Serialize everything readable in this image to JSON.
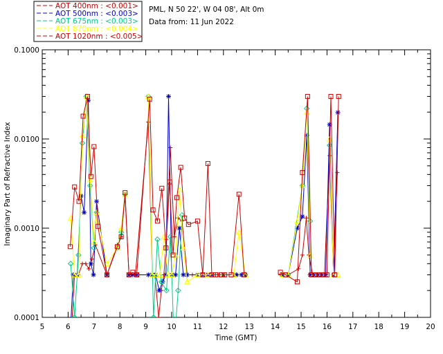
{
  "header": {
    "site": "PML, N 50 22', W 04 08', Alt 0m",
    "date": "Data from: 11 Jun 2022"
  },
  "chart_data": {
    "type": "line",
    "title": "",
    "xlabel": "Time (GMT)",
    "ylabel": "Imaginary Part of Refractive Index",
    "xlim": [
      5,
      20
    ],
    "ylim": [
      0.0001,
      0.1
    ],
    "yscale": "log",
    "grid": false,
    "legend_position": "top-left",
    "x_ticks": [
      5,
      6,
      7,
      8,
      9,
      10,
      11,
      12,
      13,
      14,
      15,
      16,
      17,
      18,
      19,
      20
    ],
    "x_tick_labels": [
      "5",
      "6",
      "7",
      "8",
      "9",
      "10",
      "11",
      "12",
      "13",
      "14",
      "15",
      "16",
      "17",
      "18",
      "19",
      "20"
    ],
    "y_ticks": [
      0.0001,
      0.001,
      0.01,
      0.1
    ],
    "y_tick_labels": [
      "0.0001",
      "0.0010",
      "0.0100",
      "0.1000"
    ],
    "series": [
      {
        "name": "AOT  400nm : <0.001>",
        "color": "#cc0000",
        "marker": "plus",
        "x": [
          6.1,
          6.25,
          6.4,
          6.55,
          6.68,
          6.8,
          6.92,
          7.05,
          7.5,
          7.9,
          8.05,
          8.2,
          8.35,
          8.45,
          8.6,
          9.1,
          9.25,
          9.35,
          9.5,
          9.6,
          9.7,
          9.8,
          9.95,
          10.1,
          10.25,
          10.4,
          10.6,
          10.8,
          11.0,
          11.15,
          11.35,
          11.55,
          11.7,
          11.85,
          12.05,
          12.4,
          12.55,
          12.7,
          12.85,
          14.2,
          14.35,
          14.5,
          14.9,
          15.05,
          15.2,
          15.3,
          15.45,
          15.6,
          15.75,
          15.9,
          16.1,
          16.25,
          16.4
        ],
        "y": [
          5e-05,
          0.0003,
          0.0003,
          0.0004,
          0.0004,
          0.00035,
          0.00045,
          0.00065,
          0.0003,
          0.00065,
          0.0008,
          0.0023,
          0.0003,
          0.0003,
          0.0003,
          0.0155,
          0.0003,
          0.0003,
          0.0001,
          0.0002,
          0.0003,
          0.00075,
          0.008,
          0.0008,
          0.0013,
          0.0012,
          0.0003,
          0.0003,
          0.0003,
          0.0003,
          0.0003,
          0.0003,
          0.0003,
          0.0003,
          0.0003,
          0.0003,
          0.0003,
          0.0003,
          0.0003,
          0.0003,
          0.0003,
          0.0003,
          0.00035,
          0.0005,
          0.0013,
          0.0005,
          0.0003,
          0.0003,
          0.0003,
          0.0003,
          0.0065,
          0.0003,
          0.0042
        ]
      },
      {
        "name": "AOT  500nm : <0.003>",
        "color": "#0000cc",
        "marker": "star",
        "x": [
          6.1,
          6.2,
          6.35,
          6.5,
          6.62,
          6.78,
          6.88,
          6.98,
          7.1,
          7.5,
          8.35,
          8.5,
          8.65,
          9.1,
          9.25,
          9.38,
          9.52,
          9.65,
          9.78,
          9.88,
          10.0,
          10.15,
          10.3,
          10.45,
          10.6,
          11.0,
          11.2,
          11.4,
          11.55,
          12.0,
          12.5,
          12.7,
          12.85,
          14.3,
          14.5,
          14.85,
          15.05,
          15.22,
          15.35,
          15.5,
          15.65,
          15.8,
          15.95,
          16.1,
          16.25,
          16.42
        ],
        "y": [
          8e-05,
          0.0003,
          0.0003,
          0.0023,
          0.0015,
          0.027,
          0.0004,
          0.0003,
          0.002,
          0.0003,
          0.0003,
          0.0003,
          0.0003,
          0.0003,
          0.0003,
          0.0003,
          0.0002,
          0.00025,
          0.0003,
          0.03,
          0.0003,
          0.0003,
          0.001,
          0.0003,
          0.0003,
          0.0003,
          0.0003,
          0.0003,
          0.0003,
          0.0003,
          0.0003,
          0.0003,
          0.0003,
          0.0003,
          0.0003,
          0.001,
          0.00135,
          0.011,
          0.0003,
          0.0003,
          0.0003,
          0.0003,
          0.0003,
          0.0145,
          0.0003,
          0.0198
        ]
      },
      {
        "name": "AOT  675nm : <0.003>",
        "color": "#00cc88",
        "marker": "diamond",
        "x": [
          6.1,
          6.25,
          6.4,
          6.55,
          6.7,
          6.85,
          7.0,
          7.1,
          7.9,
          8.05,
          8.2,
          9.1,
          9.3,
          9.45,
          9.6,
          9.8,
          9.95,
          10.1,
          10.25,
          10.4,
          14.3,
          14.5,
          15.05,
          15.22,
          15.35,
          16.1
        ],
        "y": [
          0.0004,
          0.0001,
          0.0005,
          0.009,
          0.03,
          0.003,
          0.0006,
          0.0015,
          0.0006,
          0.0009,
          0.0024,
          0.03,
          0.0001,
          0.00075,
          0.00025,
          0.0002,
          0.0008,
          5e-05,
          0.0002,
          0.0014,
          0.0003,
          0.0003,
          0.003,
          0.022,
          0.0012,
          0.0085
        ]
      },
      {
        "name": "AOT  870nm : <0.004>",
        "color": "#ffff00",
        "marker": "triangle",
        "x": [
          6.1,
          6.25,
          6.4,
          6.55,
          6.72,
          6.85,
          7.0,
          7.1,
          7.5,
          7.9,
          8.05,
          8.2,
          9.1,
          9.25,
          9.4,
          9.55,
          9.7,
          9.85,
          10.0,
          10.15,
          10.3,
          10.45,
          10.6,
          11.0,
          11.2,
          11.4,
          11.55,
          12.0,
          12.4,
          12.6,
          12.85,
          14.3,
          14.5,
          14.85,
          15.05,
          15.22,
          15.35,
          16.1,
          16.25,
          16.42
        ],
        "y": [
          0.0013,
          0.0003,
          0.0003,
          0.011,
          0.03,
          0.0035,
          0.0007,
          0.0015,
          0.0004,
          0.0006,
          0.001,
          0.0024,
          0.03,
          0.0003,
          0.0003,
          0.0003,
          0.0008,
          0.0003,
          0.0003,
          0.0005,
          0.0027,
          0.0006,
          0.00025,
          0.0003,
          0.0003,
          0.0003,
          0.0003,
          0.0003,
          0.0003,
          0.0009,
          0.0003,
          0.0003,
          0.0003,
          0.0012,
          0.003,
          0.02,
          0.0005,
          0.01,
          0.0003,
          0.0003
        ]
      },
      {
        "name": "AOT 1020nm : <0.005>",
        "color": "#cc0000",
        "marker": "square",
        "x": [
          6.08,
          6.25,
          6.42,
          6.58,
          6.75,
          6.88,
          7.0,
          7.15,
          7.5,
          7.9,
          8.05,
          8.2,
          8.35,
          8.5,
          8.65,
          9.15,
          9.28,
          9.45,
          9.62,
          9.78,
          9.92,
          10.05,
          10.2,
          10.35,
          10.5,
          10.65,
          11.0,
          11.2,
          11.4,
          11.55,
          11.7,
          11.9,
          12.05,
          12.3,
          12.6,
          12.8,
          14.2,
          14.4,
          14.85,
          15.05,
          15.25,
          15.4,
          15.55,
          15.7,
          15.85,
          16.0,
          16.15,
          16.3,
          16.45
        ],
        "y": [
          0.00062,
          0.0029,
          0.002,
          0.018,
          0.03,
          0.0038,
          0.0082,
          0.00105,
          0.0003,
          0.00062,
          0.0008,
          0.0025,
          0.0003,
          0.00032,
          0.0003,
          0.028,
          0.0016,
          0.0012,
          0.0028,
          0.0006,
          0.0033,
          0.0005,
          0.0022,
          0.0048,
          0.0013,
          0.0011,
          0.0012,
          0.0003,
          0.0053,
          0.0003,
          0.0003,
          0.0003,
          0.0003,
          0.0003,
          0.0024,
          0.0003,
          0.00032,
          0.0003,
          0.00025,
          0.0042,
          0.03,
          0.0003,
          0.0003,
          0.0003,
          0.0003,
          0.0003,
          0.03,
          0.0003,
          0.03
        ]
      }
    ]
  }
}
